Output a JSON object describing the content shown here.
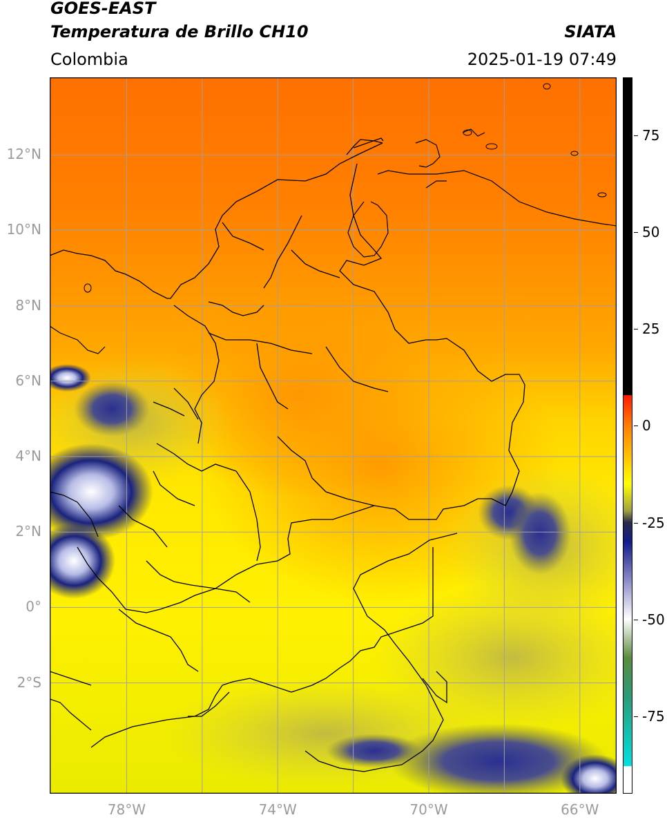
{
  "header": {
    "satellite": "GOES-EAST",
    "product": "Temperatura de Brillo CH10",
    "agency": "SIATA",
    "region": "Colombia",
    "datetime": "2025-01-19 07:49"
  },
  "map": {
    "lon_range": [
      -80,
      -65
    ],
    "lat_range": [
      -5,
      14
    ],
    "lat_labels": [
      "12°N",
      "10°N",
      "8°N",
      "6°N",
      "4°N",
      "2°N",
      "0°",
      "2°S"
    ],
    "lat_values": [
      12,
      10,
      8,
      6,
      4,
      2,
      0,
      -2
    ],
    "lon_labels": [
      "78°W",
      "74°W",
      "70°W",
      "66°W"
    ],
    "lon_values": [
      -78,
      -74,
      -70,
      -66
    ],
    "gridlines": true,
    "grid_lon_values": [
      -78,
      -76,
      -74,
      -72,
      -70,
      -68,
      -66
    ],
    "colors": {
      "orange": "#ff7b00",
      "light_orange": "#ffa000",
      "yellow": "#ffee00",
      "olive": "#c8c240",
      "navy": "#1a237e",
      "lavender": "#b8bde6",
      "white": "#ffffff",
      "grid": "#a0a0a0",
      "border": "#000000"
    }
  },
  "colorbar": {
    "ticks": [
      "75",
      "50",
      "25",
      "0",
      "-25",
      "-50",
      "-75"
    ],
    "tick_values": [
      75,
      50,
      25,
      0,
      -25,
      -50,
      -75
    ],
    "range": [
      -95,
      90
    ],
    "stops": [
      {
        "v": 90,
        "c": "#000000"
      },
      {
        "v": 8,
        "c": "#000000"
      },
      {
        "v": 7.9,
        "c": "#ff1a00"
      },
      {
        "v": 0,
        "c": "#ff8000"
      },
      {
        "v": -15,
        "c": "#ffff00"
      },
      {
        "v": -22,
        "c": "#a0a040"
      },
      {
        "v": -25,
        "c": "#2a2a4a"
      },
      {
        "v": -30,
        "c": "#101e8c"
      },
      {
        "v": -40,
        "c": "#8c8cc8"
      },
      {
        "v": -50,
        "c": "#ffffff"
      },
      {
        "v": -60,
        "c": "#5a8c3c"
      },
      {
        "v": -70,
        "c": "#2a9c7a"
      },
      {
        "v": -88,
        "c": "#00e0e0"
      },
      {
        "v": -88.1,
        "c": "#ffffff"
      },
      {
        "v": -95,
        "c": "#ffffff"
      }
    ]
  }
}
